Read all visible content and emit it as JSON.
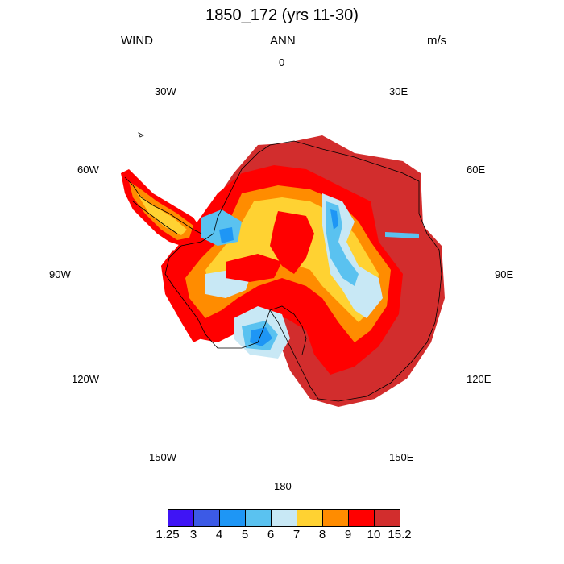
{
  "title": "1850_172 (yrs 11-30)",
  "left_string": "WIND",
  "center_string": "ANN",
  "right_string": "m/s",
  "longitude_labels": [
    "0",
    "30E",
    "60E",
    "90E",
    "120E",
    "150E",
    "180",
    "150W",
    "120W",
    "90W",
    "60W",
    "30W"
  ],
  "colorbar": {
    "colors": [
      "#3f14f5",
      "#3c5ae6",
      "#1e96f5",
      "#5ac2f0",
      "#c8e8f5",
      "#ffd232",
      "#ff8c00",
      "#ff0000",
      "#d22d2d"
    ],
    "labels": [
      "1.25",
      "3",
      "4",
      "5",
      "6",
      "7",
      "8",
      "9",
      "10",
      "15.2"
    ]
  }
}
